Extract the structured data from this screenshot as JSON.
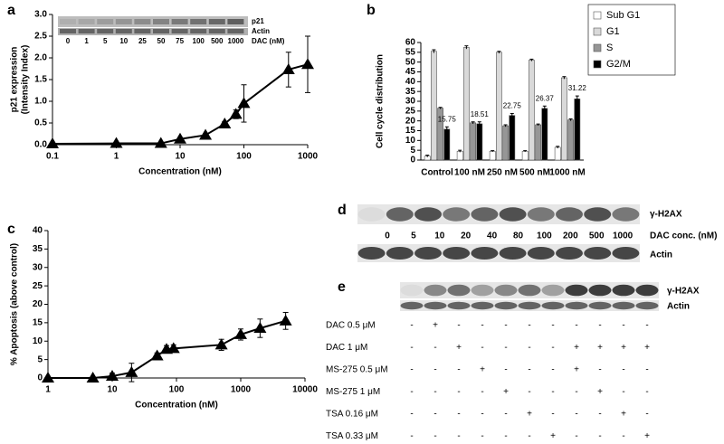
{
  "chart_data": [
    {
      "type": "line",
      "panel_label": "a",
      "ylabel": [
        "p21 expression",
        "(Intensity Index)"
      ],
      "xlabel": "Concentration (nM)",
      "log_x": true,
      "xlim": [
        0.1,
        1000
      ],
      "xticks": [
        0.1,
        1,
        10,
        100,
        1000
      ],
      "ylim": [
        0,
        3
      ],
      "yticks": [
        {
          "value": 0,
          "label": "0.0"
        },
        {
          "value": 0.5,
          "label": "0.5"
        },
        {
          "value": 1,
          "label": "1.0"
        },
        {
          "value": 1.5,
          "label": "1.5"
        },
        {
          "value": 2,
          "label": "2.0"
        },
        {
          "value": 2.5,
          "label": "2.5"
        },
        {
          "value": 3,
          "label": "3.0"
        }
      ],
      "x": [
        0.1,
        1,
        5,
        10,
        25,
        50,
        75,
        100,
        500,
        1000
      ],
      "series": [
        {
          "color": "#000000",
          "values": [
            0.02,
            0.03,
            0.03,
            0.13,
            0.22,
            0.48,
            0.7,
            0.95,
            1.73,
            1.85
          ],
          "errors": [
            null,
            null,
            null,
            null,
            null,
            0.05,
            0.1,
            0.43,
            0.4,
            0.65
          ]
        }
      ],
      "inset": {
        "bands": [
          "p21",
          "Actin"
        ],
        "lanes": [
          "0",
          "1",
          "5",
          "10",
          "25",
          "50",
          "75",
          "100",
          "500",
          "1000"
        ],
        "lanes_title": "DAC (nM)"
      }
    },
    {
      "type": "bar",
      "panel_label": "b",
      "ylabel": "Cell cycle distribution",
      "categories": [
        "Control",
        "100 nM",
        "250 nM",
        "500 nM",
        "1000 nM"
      ],
      "ylim": [
        0,
        60
      ],
      "yticks": [
        0,
        5,
        10,
        15,
        20,
        25,
        30,
        35,
        40,
        45,
        50,
        55,
        60
      ],
      "series": [
        {
          "name": "Sub G1",
          "color": "#ffffff",
          "values": [
            2,
            4.5,
            4.5,
            4.5,
            6.5
          ],
          "errors": [
            0.5,
            0.5,
            0.3,
            0.3,
            0.5
          ]
        },
        {
          "name": "G1",
          "color": "#d9d9d9",
          "values": [
            55.5,
            57.5,
            55,
            51,
            42
          ],
          "errors": [
            0.8,
            0.8,
            0.5,
            0.5,
            0.6
          ]
        },
        {
          "name": "S",
          "color": "#969696",
          "values": [
            26.5,
            19,
            17.5,
            18,
            20.5
          ],
          "errors": [
            0.4,
            0.5,
            0.5,
            0.4,
            0.5
          ]
        },
        {
          "name": "G2/M",
          "color": "#000000",
          "values": [
            15.75,
            18.51,
            22.75,
            26.37,
            31.22
          ],
          "errors": [
            1.2,
            1,
            1,
            1.2,
            1.5
          ],
          "value_labels": [
            "15.75",
            "18.51",
            "22.75",
            "26.37",
            "31.22"
          ]
        }
      ],
      "legend": "top-right"
    },
    {
      "type": "line",
      "panel_label": "c",
      "ylabel": "% Apoptosis (above control)",
      "xlabel": "Concentration (nM)",
      "log_x": true,
      "xlim": [
        1,
        10000
      ],
      "xticks": [
        1,
        10,
        100,
        1000,
        10000
      ],
      "ylim": [
        0,
        40
      ],
      "yticks": [
        0,
        5,
        10,
        15,
        20,
        25,
        30,
        35,
        40
      ],
      "x": [
        1,
        5,
        10,
        20,
        50,
        70,
        90,
        500,
        1000,
        2000,
        5000
      ],
      "series": [
        {
          "color": "#000000",
          "values": [
            0,
            0,
            0.5,
            1.5,
            6,
            7.8,
            8,
            9,
            11.8,
            13.5,
            15.5
          ],
          "errors": [
            null,
            null,
            0.8,
            2.5,
            0.8,
            1,
            1,
            1.5,
            1.5,
            2.5,
            2.3
          ]
        }
      ]
    }
  ],
  "blots": {
    "d": {
      "label": "d",
      "top_band": "γ-H2AX",
      "lanes": [
        "0",
        "5",
        "10",
        "20",
        "40",
        "80",
        "100",
        "200",
        "500",
        "1000"
      ],
      "lanes_title": "DAC conc. (nM)",
      "bottom_band": "Actin"
    },
    "e": {
      "label": "e",
      "top_band": "γ-H2AX",
      "bottom_band": "Actin",
      "treatments": [
        {
          "name": "DAC 0.5 μM",
          "signs": [
            "-",
            "+",
            "-",
            "-",
            "-",
            "-",
            "-",
            "-",
            "-",
            "-",
            "-"
          ]
        },
        {
          "name": "DAC 1 μM",
          "signs": [
            "-",
            "-",
            "+",
            "-",
            "-",
            "-",
            "-",
            "+",
            "+",
            "+",
            "+"
          ]
        },
        {
          "name": "MS-275 0.5 μM",
          "signs": [
            "-",
            "-",
            "-",
            "+",
            "-",
            "-",
            "-",
            "+",
            "-",
            "-",
            "-"
          ]
        },
        {
          "name": "MS-275 1 μM",
          "signs": [
            "-",
            "-",
            "-",
            "-",
            "+",
            "-",
            "-",
            "-",
            "+",
            "-",
            "-"
          ]
        },
        {
          "name": "TSA 0.16 μM",
          "signs": [
            "-",
            "-",
            "-",
            "-",
            "-",
            "+",
            "-",
            "-",
            "-",
            "+",
            "-"
          ]
        },
        {
          "name": "TSA 0.33 μM",
          "signs": [
            "-",
            "-",
            "-",
            "-",
            "-",
            "-",
            "+",
            "-",
            "-",
            "-",
            "+"
          ]
        }
      ]
    }
  }
}
